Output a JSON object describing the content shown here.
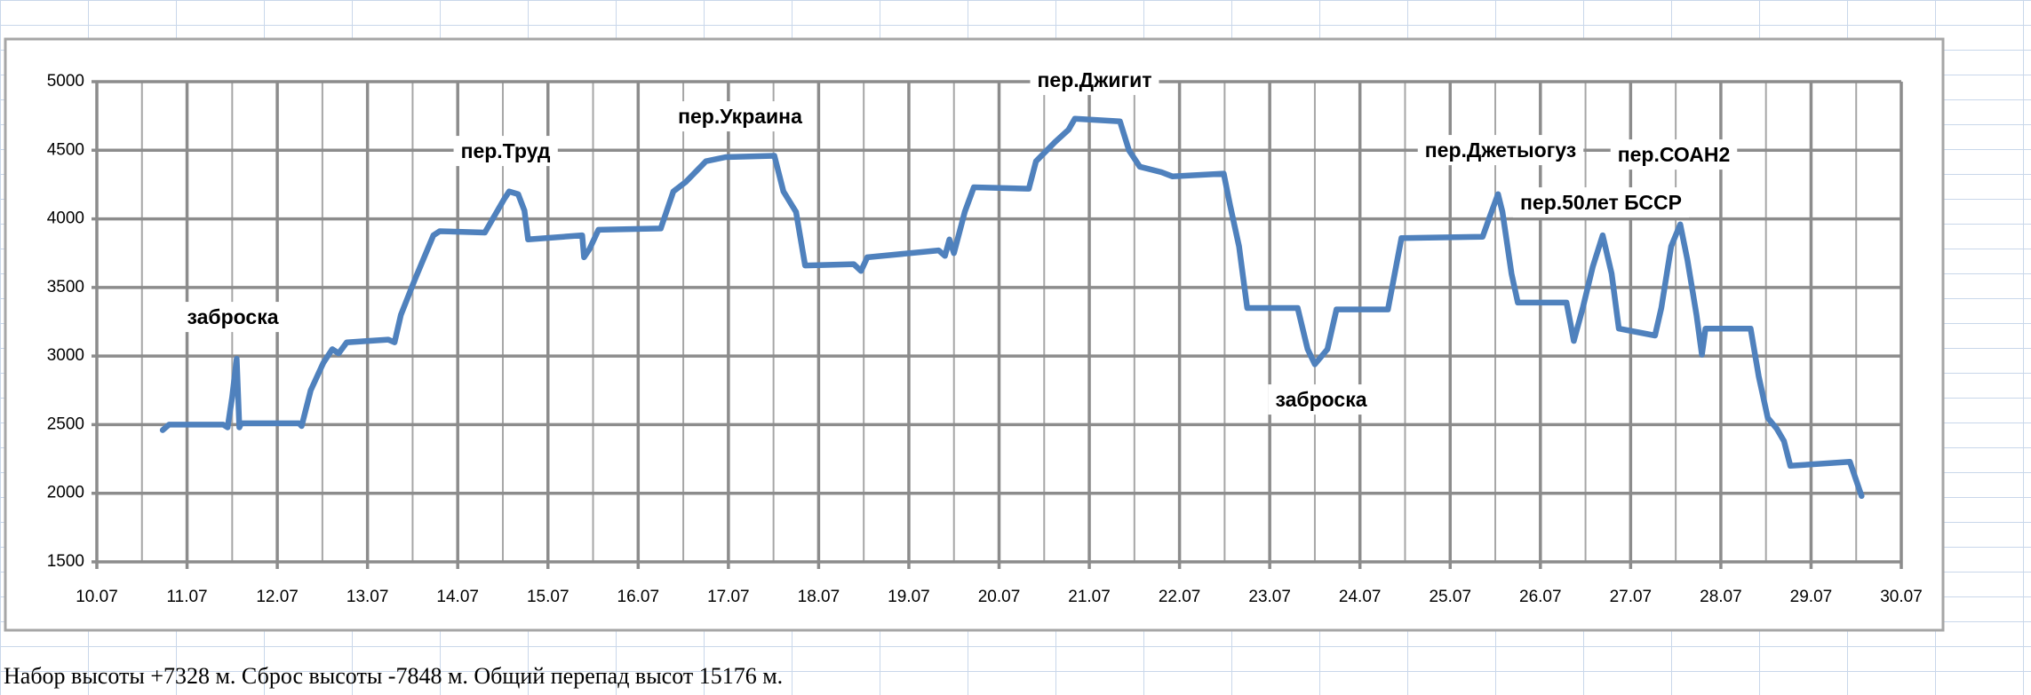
{
  "chart_data": {
    "type": "line",
    "caption": "Набор высоты +7328 м. Сброс высоты -7848 м. Общий перепад высот 15176 м.",
    "annotations": [
      "заброска",
      "пер.Труд",
      "пер.Украина",
      "пер.Джигит",
      "заброска",
      "пер.Джетыогуз",
      "пер.50лет БССР",
      "пер.СОАН2"
    ],
    "x": [
      10.73,
      10.8,
      11.4,
      11.45,
      11.5,
      11.55,
      11.58,
      11.6,
      12.24,
      12.27,
      12.37,
      12.51,
      12.61,
      12.68,
      12.77,
      13.23,
      13.3,
      13.37,
      13.52,
      13.73,
      13.8,
      14.3,
      14.52,
      14.57,
      14.67,
      14.74,
      14.78,
      15.38,
      15.4,
      15.46,
      15.56,
      16.25,
      16.39,
      16.53,
      16.75,
      16.97,
      17.51,
      17.61,
      17.75,
      17.85,
      18.39,
      18.47,
      18.54,
      19.33,
      19.4,
      19.45,
      19.5,
      19.62,
      19.72,
      20.33,
      20.41,
      20.62,
      20.77,
      20.84,
      21.34,
      21.44,
      21.56,
      21.8,
      21.92,
      22.49,
      22.56,
      22.66,
      22.75,
      23.31,
      23.42,
      23.5,
      23.64,
      23.74,
      24.31,
      24.46,
      25.36,
      25.43,
      25.53,
      25.58,
      25.68,
      25.75,
      26.29,
      26.37,
      26.47,
      26.58,
      26.69,
      26.79,
      26.87,
      27.27,
      27.34,
      27.45,
      27.55,
      27.63,
      27.73,
      27.79,
      27.83,
      28.33,
      28.42,
      28.52,
      28.62,
      28.7,
      28.77,
      29.43,
      29.56
    ],
    "series": [
      {
        "color": "#4f81bd",
        "values": [
          2460,
          2500,
          2500,
          2480,
          2700,
          2980,
          2480,
          2510,
          2510,
          2490,
          2750,
          2950,
          3050,
          3020,
          3100,
          3120,
          3100,
          3300,
          3550,
          3880,
          3910,
          3900,
          4150,
          4200,
          4180,
          4060,
          3850,
          3880,
          3720,
          3780,
          3920,
          3930,
          4200,
          4270,
          4420,
          4450,
          4460,
          4200,
          4050,
          3660,
          3670,
          3620,
          3720,
          3770,
          3730,
          3850,
          3750,
          4050,
          4230,
          4220,
          4420,
          4560,
          4650,
          4730,
          4710,
          4500,
          4380,
          4340,
          4310,
          4330,
          4100,
          3800,
          3350,
          3350,
          3050,
          2940,
          3050,
          3340,
          3340,
          3860,
          3870,
          4000,
          4180,
          4050,
          3600,
          3390,
          3390,
          3110,
          3350,
          3650,
          3880,
          3600,
          3200,
          3150,
          3350,
          3800,
          3960,
          3700,
          3300,
          3010,
          3200,
          3200,
          2850,
          2550,
          2470,
          2380,
          2200,
          2230,
          1980
        ]
      }
    ],
    "xlim": [
      10,
      30
    ],
    "xticks": [
      {
        "value": 10,
        "label": "10.07"
      },
      {
        "value": 11,
        "label": "11.07"
      },
      {
        "value": 12,
        "label": "12.07"
      },
      {
        "value": 13,
        "label": "13.07"
      },
      {
        "value": 14,
        "label": "14.07"
      },
      {
        "value": 15,
        "label": "15.07"
      },
      {
        "value": 16,
        "label": "16.07"
      },
      {
        "value": 17,
        "label": "17.07"
      },
      {
        "value": 18,
        "label": "18.07"
      },
      {
        "value": 19,
        "label": "19.07"
      },
      {
        "value": 20,
        "label": "20.07"
      },
      {
        "value": 21,
        "label": "21.07"
      },
      {
        "value": 22,
        "label": "22.07"
      },
      {
        "value": 23,
        "label": "23.07"
      },
      {
        "value": 24,
        "label": "24.07"
      },
      {
        "value": 25,
        "label": "25.07"
      },
      {
        "value": 26,
        "label": "26.07"
      },
      {
        "value": 27,
        "label": "27.07"
      },
      {
        "value": 28,
        "label": "28.07"
      },
      {
        "value": 29,
        "label": "29.07"
      },
      {
        "value": 30,
        "label": "30.07"
      }
    ],
    "minor_xticks": [
      10.5,
      11.5,
      12.5,
      13.5,
      14.5,
      15.5,
      16.5,
      17.5,
      18.5,
      19.5,
      20.5,
      21.5,
      22.5,
      23.5,
      24.5,
      25.5,
      26.5,
      27.5,
      28.5,
      29.5
    ],
    "ylim": [
      1500,
      5000
    ],
    "yticks": [
      1500,
      2000,
      2500,
      3000,
      3500,
      4000,
      4500,
      5000
    ],
    "grid": true
  }
}
